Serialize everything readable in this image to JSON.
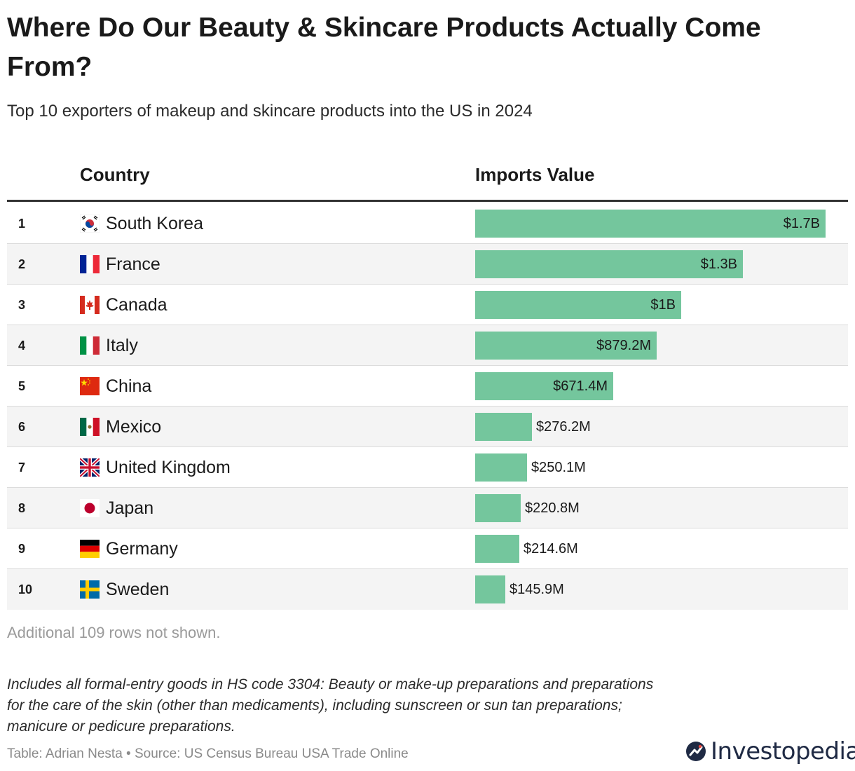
{
  "header": {
    "title": "Where Do Our Beauty & Skincare Products Actually Come From?",
    "subtitle": "Top 10 exporters of makeup and skincare products into the US in 2024"
  },
  "table": {
    "col_country": "Country",
    "col_value": "Imports Value",
    "more_rows_note": "Additional 109 rows not shown."
  },
  "chart_data": {
    "type": "bar",
    "orientation": "horizontal",
    "unit": "USD",
    "columns": [
      "Country",
      "Imports Value"
    ],
    "rows": [
      {
        "rank": "1",
        "country": "South Korea",
        "flag": "south-korea",
        "value": 1700000000,
        "label": "$1.7B"
      },
      {
        "rank": "2",
        "country": "France",
        "flag": "france",
        "value": 1300000000,
        "label": "$1.3B"
      },
      {
        "rank": "3",
        "country": "Canada",
        "flag": "canada",
        "value": 1000000000,
        "label": "$1B"
      },
      {
        "rank": "4",
        "country": "Italy",
        "flag": "italy",
        "value": 879200000,
        "label": "$879.2M"
      },
      {
        "rank": "5",
        "country": "China",
        "flag": "china",
        "value": 671400000,
        "label": "$671.4M"
      },
      {
        "rank": "6",
        "country": "Mexico",
        "flag": "mexico",
        "value": 276200000,
        "label": "$276.2M"
      },
      {
        "rank": "7",
        "country": "United Kingdom",
        "flag": "united-kingdom",
        "value": 250100000,
        "label": "$250.1M"
      },
      {
        "rank": "8",
        "country": "Japan",
        "flag": "japan",
        "value": 220800000,
        "label": "$220.8M"
      },
      {
        "rank": "9",
        "country": "Germany",
        "flag": "germany",
        "value": 214600000,
        "label": "$214.6M"
      },
      {
        "rank": "10",
        "country": "Sweden",
        "flag": "sweden",
        "value": 145900000,
        "label": "$145.9M"
      }
    ],
    "max_value": 1700000000
  },
  "footer": {
    "footnote": "Includes all formal-entry goods in HS code 3304: Beauty or make-up preparations and preparations for the care of the skin (other than medicaments), including sunscreen or sun tan preparations; manicure or pedicure preparations.",
    "credit": "Table: Adrian Nesta • Source: US Census Bureau USA Trade Online",
    "logo_text": "Investopedia"
  },
  "colors": {
    "bar": "#74c69d"
  }
}
